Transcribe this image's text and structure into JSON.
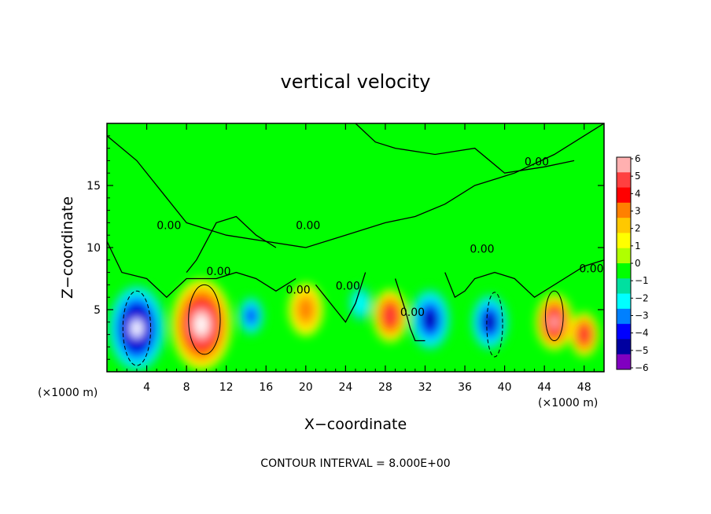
{
  "chart_data": {
    "type": "heatmap",
    "title": "vertical velocity",
    "xlabel": "X−coordinate",
    "ylabel": "Z−coordinate",
    "x_unit_left": "(×1000 m)",
    "x_unit_right": "(×1000 m)",
    "footer": "CONTOUR INTERVAL = 8.000E+00",
    "xlim": [
      0,
      50
    ],
    "ylim": [
      0,
      20
    ],
    "x_ticks": [
      4,
      8,
      12,
      16,
      20,
      24,
      28,
      32,
      36,
      40,
      44,
      48
    ],
    "y_ticks": [
      5,
      10,
      15
    ],
    "colorbar": {
      "ticks": [
        6,
        5,
        4,
        3,
        2,
        1,
        0,
        -1,
        -2,
        -3,
        -4,
        -5,
        -6
      ],
      "tick_labels": [
        "6",
        "5",
        "4",
        "3",
        "2",
        "1",
        "0",
        "−1",
        "−2",
        "−3",
        "−4",
        "−5",
        "−6"
      ],
      "colors": [
        "#ffb0b0",
        "#ff4040",
        "#ff0000",
        "#ff8000",
        "#ffc800",
        "#ffff00",
        "#b0ff00",
        "#00ff00",
        "#00e0a0",
        "#00ffff",
        "#0080ff",
        "#0000ff",
        "#0000a0",
        "#8000c0"
      ]
    },
    "contour_labels": [
      "0.00",
      "0.00",
      "0.00",
      "0.00",
      "0.00",
      "0.00",
      "0.00",
      "0.00",
      "0.00"
    ],
    "blobs": [
      {
        "x": 3.0,
        "z": 3.5,
        "w": 5.0,
        "v": -12
      },
      {
        "x": 9.5,
        "z": 3.8,
        "w": 5.2,
        "v": 12
      },
      {
        "x": 14.5,
        "z": 4.5,
        "w": 2.2,
        "v": -8
      },
      {
        "x": 20.0,
        "z": 5.0,
        "w": 3.0,
        "v": 5
      },
      {
        "x": 25.5,
        "z": 5.5,
        "w": 2.0,
        "v": -4
      },
      {
        "x": 28.5,
        "z": 4.5,
        "w": 3.0,
        "v": 9
      },
      {
        "x": 32.5,
        "z": 4.2,
        "w": 3.5,
        "v": -9
      },
      {
        "x": 38.5,
        "z": 4.0,
        "w": 3.2,
        "v": -9
      },
      {
        "x": 45.0,
        "z": 4.0,
        "w": 3.2,
        "v": 10
      },
      {
        "x": 48.0,
        "z": 3.0,
        "w": 2.5,
        "v": 9
      }
    ]
  }
}
